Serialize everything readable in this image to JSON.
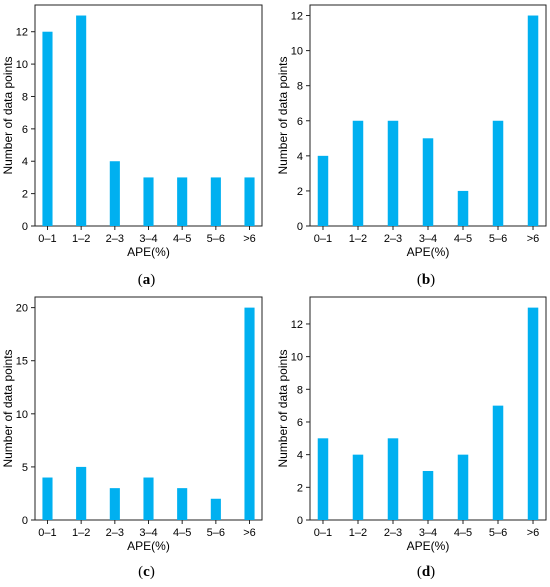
{
  "chart_data": [
    {
      "type": "bar",
      "panel_label": "a",
      "categories": [
        "0–1",
        "1–2",
        "2–3",
        "3–4",
        "4–5",
        "5–6",
        ">6"
      ],
      "values": [
        12,
        13,
        4,
        3,
        3,
        3,
        3
      ],
      "xlabel": "APE(%)",
      "ylabel": "Number of data points",
      "ylim": [
        0,
        13.65
      ],
      "yticks": [
        "0",
        "2",
        "4",
        "6",
        "8",
        "10",
        "12"
      ],
      "ytick_values": [
        0,
        2,
        4,
        6,
        8,
        10,
        12
      ],
      "bar_color": "#00b0f0",
      "grid": false,
      "legend": "none"
    },
    {
      "type": "bar",
      "panel_label": "b",
      "categories": [
        "0–1",
        "1–2",
        "2–3",
        "3–4",
        "4–5",
        "5–6",
        ">6"
      ],
      "values": [
        4,
        6,
        6,
        5,
        2,
        6,
        12
      ],
      "xlabel": "APE(%)",
      "ylabel": "Number of data points",
      "ylim": [
        0,
        12.6
      ],
      "yticks": [
        "0",
        "2",
        "4",
        "6",
        "8",
        "10",
        "12"
      ],
      "ytick_values": [
        0,
        2,
        4,
        6,
        8,
        10,
        12
      ],
      "bar_color": "#00b0f0",
      "grid": false,
      "legend": "none"
    },
    {
      "type": "bar",
      "panel_label": "c",
      "categories": [
        "0–1",
        "1–2",
        "2–3",
        "3–4",
        "4–5",
        "5–6",
        ">6"
      ],
      "values": [
        4,
        5,
        3,
        4,
        3,
        2,
        20
      ],
      "xlabel": "APE(%)",
      "ylabel": "Number of data points",
      "ylim": [
        0,
        21
      ],
      "yticks": [
        "0",
        "5",
        "10",
        "15",
        "20"
      ],
      "ytick_values": [
        0,
        5,
        10,
        15,
        20
      ],
      "bar_color": "#00b0f0",
      "grid": false,
      "legend": "none"
    },
    {
      "type": "bar",
      "panel_label": "d",
      "categories": [
        "0–1",
        "1–2",
        "2–3",
        "3–4",
        "4–5",
        "5–6",
        ">6"
      ],
      "values": [
        5,
        4,
        5,
        3,
        4,
        7,
        13
      ],
      "xlabel": "APE(%)",
      "ylabel": "Number of data points",
      "ylim": [
        0,
        13.65
      ],
      "yticks": [
        "0",
        "2",
        "4",
        "6",
        "8",
        "10",
        "12"
      ],
      "ytick_values": [
        0,
        2,
        4,
        6,
        8,
        10,
        12
      ],
      "bar_color": "#00b0f0",
      "grid": false,
      "legend": "none"
    }
  ]
}
